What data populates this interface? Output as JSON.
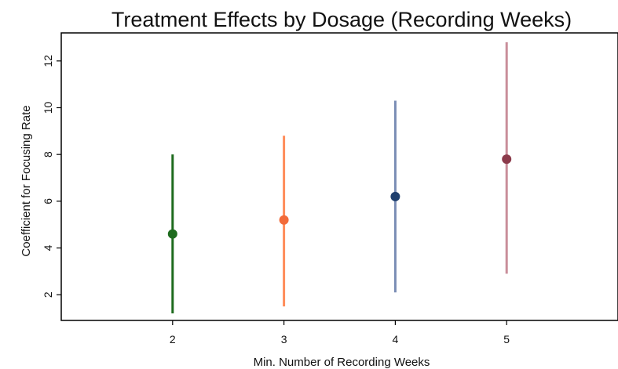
{
  "chart_data": {
    "type": "scatter",
    "title": "Treatment Effects by Dosage (Recording Weeks)",
    "xlabel": "Min. Number of Recording Weeks",
    "ylabel": "Coefficient for Focusing Rate",
    "xlim": [
      1.0,
      6.0
    ],
    "ylim": [
      0.9,
      13.2
    ],
    "xticks": [
      2,
      3,
      4,
      5
    ],
    "yticks": [
      2,
      4,
      6,
      8,
      10,
      12
    ],
    "grid": false,
    "series": [
      {
        "x": 2,
        "y": 4.6,
        "ci": [
          1.2,
          8.0
        ],
        "color": "#1e6b1e"
      },
      {
        "x": 3,
        "y": 5.2,
        "ci": [
          1.5,
          8.8
        ],
        "color": "#f26b3a"
      },
      {
        "x": 4,
        "y": 6.2,
        "ci": [
          2.1,
          10.3
        ],
        "color": "#1f3f6e"
      },
      {
        "x": 5,
        "y": 7.8,
        "ci": [
          2.9,
          12.8
        ],
        "color": "#8b3a4a"
      }
    ],
    "ci_colors": [
      "#1e6b1e",
      "#ff8c5a",
      "#7a8db5",
      "#c98e9a"
    ]
  }
}
